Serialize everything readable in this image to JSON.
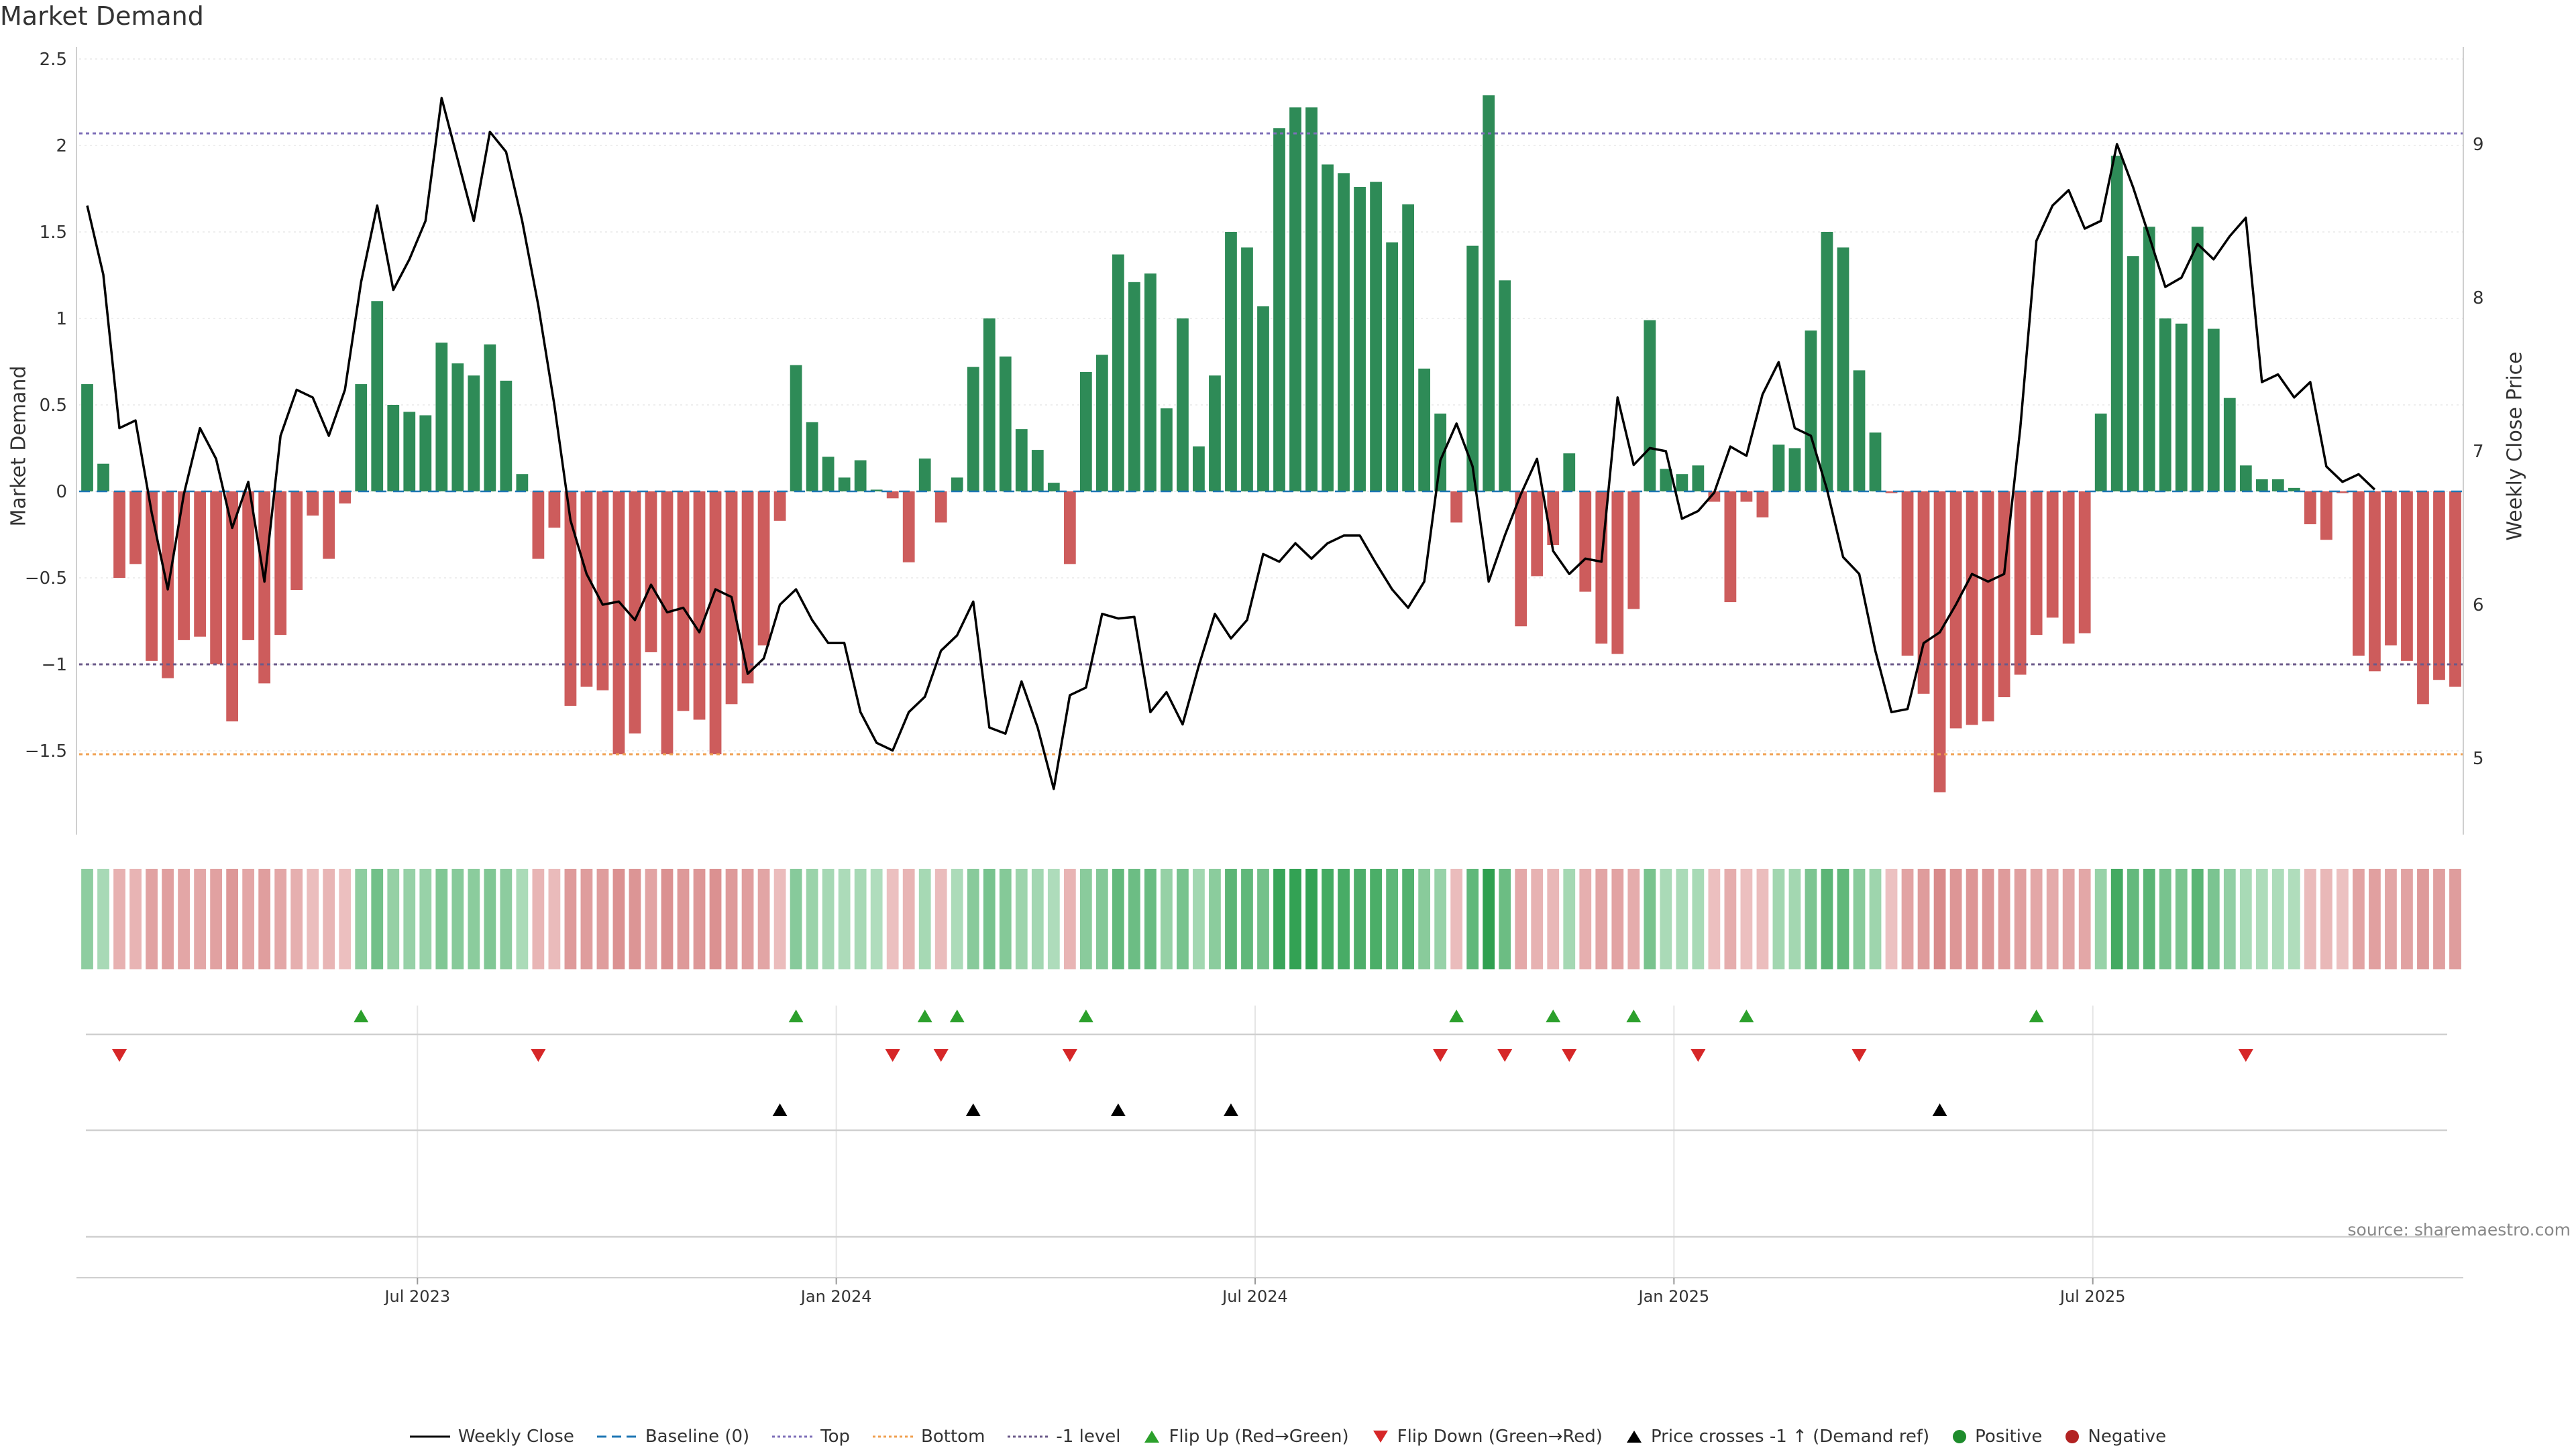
{
  "title": "Market Demand",
  "source": "source: sharemaestro.com",
  "chart_data": {
    "type": "bar",
    "ylabel": "Market Demand",
    "y2label": "Weekly Close Price",
    "ylim": [
      -2.0,
      2.5
    ],
    "y2lim": [
      4.5,
      9.5
    ],
    "yticks": [
      2.5,
      2,
      1.5,
      1,
      0.5,
      0,
      -0.5,
      -1,
      -1.5
    ],
    "yticklabels": [
      "2.5",
      "2",
      "1.5",
      "1",
      "0.5",
      "0",
      "−0.5",
      "−1",
      "−1.5"
    ],
    "y2ticks": [
      9,
      8,
      7,
      6,
      5
    ],
    "y2ticklabels": [
      "9",
      "8",
      "7",
      "6",
      "5"
    ],
    "hlines": [
      {
        "name": "Top",
        "value": 2.07,
        "color": "#7e6fb8"
      },
      {
        "name": "-1 level",
        "value": -1.0,
        "color": "#6b5a8a"
      },
      {
        "name": "Bottom",
        "value": -1.52,
        "color": "#f0a050"
      }
    ],
    "xaxis_labels": [
      "Jul 2023",
      "Jan 2024",
      "Jul 2024",
      "Jan 2025",
      "Jul 2025"
    ],
    "xaxis_label_weeks": [
      21,
      47,
      73,
      99,
      125
    ],
    "demand": [
      0.62,
      0.16,
      -0.5,
      -0.42,
      -0.98,
      -1.08,
      -0.86,
      -0.84,
      -1.0,
      -1.33,
      -0.86,
      -1.11,
      -0.83,
      -0.57,
      -0.14,
      -0.39,
      -0.07,
      0.62,
      1.1,
      0.5,
      0.46,
      0.44,
      0.86,
      0.74,
      0.67,
      0.85,
      0.64,
      0.1,
      -0.39,
      -0.21,
      -1.24,
      -1.13,
      -1.15,
      -1.52,
      -1.4,
      -0.93,
      -1.52,
      -1.27,
      -1.32,
      -1.52,
      -1.23,
      -1.11,
      -0.89,
      -0.17,
      0.73,
      0.4,
      0.2,
      0.08,
      0.18,
      0.01,
      -0.04,
      -0.41,
      0.19,
      -0.18,
      0.08,
      0.72,
      1.0,
      0.78,
      0.36,
      0.24,
      0.05,
      -0.42,
      0.69,
      0.79,
      1.37,
      1.21,
      1.26,
      0.48,
      1.0,
      0.26,
      0.67,
      1.5,
      1.41,
      1.07,
      2.1,
      2.22,
      2.22,
      1.89,
      1.84,
      1.76,
      1.79,
      1.44,
      1.66,
      0.71,
      0.45,
      -0.18,
      1.42,
      2.29,
      1.22,
      -0.78,
      -0.49,
      -0.31,
      0.22,
      -0.58,
      -0.88,
      -0.94,
      -0.68,
      0.99,
      0.13,
      0.1,
      0.15,
      -0.06,
      -0.64,
      -0.06,
      -0.15,
      0.27,
      0.25,
      0.93,
      1.5,
      1.41,
      0.7,
      0.34,
      -0.01,
      -0.95,
      -1.17,
      -1.74,
      -1.37,
      -1.35,
      -1.33,
      -1.19,
      -1.06,
      -0.83,
      -0.73,
      -0.88,
      -0.82,
      0.45,
      1.94,
      1.36,
      1.53,
      1.0,
      0.97,
      1.53,
      0.94,
      0.54,
      0.15,
      0.07,
      0.07,
      0.02,
      -0.19,
      -0.28,
      -0.01,
      -0.95,
      -1.04,
      -0.89,
      -0.98,
      -1.23,
      -1.09,
      -1.13
    ],
    "close": [
      8.6,
      8.15,
      7.15,
      7.2,
      6.6,
      6.1,
      6.72,
      7.15,
      6.95,
      6.5,
      6.8,
      6.15,
      7.1,
      7.4,
      7.35,
      7.1,
      7.4,
      8.1,
      8.6,
      8.05,
      8.25,
      8.5,
      9.3,
      8.9,
      8.5,
      9.08,
      8.95,
      8.5,
      7.95,
      7.3,
      6.55,
      6.2,
      6.0,
      6.02,
      5.9,
      6.13,
      5.95,
      5.98,
      5.82,
      6.1,
      6.05,
      5.55,
      5.65,
      6.0,
      6.1,
      5.9,
      5.75,
      5.75,
      5.3,
      5.1,
      5.05,
      5.3,
      5.4,
      5.7,
      5.8,
      6.02,
      5.2,
      5.16,
      5.5,
      5.2,
      4.8,
      5.41,
      5.46,
      5.94,
      5.91,
      5.92,
      5.3,
      5.43,
      5.22,
      5.6,
      5.94,
      5.78,
      5.9,
      6.33,
      6.28,
      6.4,
      6.3,
      6.4,
      6.45,
      6.45,
      6.27,
      6.1,
      5.98,
      6.15,
      6.94,
      7.18,
      6.9,
      6.15,
      6.45,
      6.72,
      6.95,
      6.35,
      6.2,
      6.3,
      6.28,
      7.35,
      6.91,
      7.02,
      7.0,
      6.56,
      6.61,
      6.73,
      7.03,
      6.97,
      7.37,
      7.58,
      7.15,
      7.1,
      6.75,
      6.31,
      6.2,
      5.7,
      5.3,
      5.32,
      5.75,
      5.82,
      6.0,
      6.2,
      6.15,
      6.2,
      7.15,
      8.37,
      8.6,
      8.7,
      8.45,
      8.5,
      9.0,
      8.72,
      8.4,
      8.07,
      8.13,
      8.35,
      8.25,
      8.4,
      8.52,
      7.45,
      7.5,
      7.35,
      7.45,
      6.9,
      6.8,
      6.85,
      6.75
    ],
    "flip_up_weeks": [
      17,
      44,
      52,
      54,
      62,
      85,
      91,
      96,
      103,
      121
    ],
    "flip_down_weeks": [
      2,
      28,
      50,
      53,
      61,
      84,
      88,
      92,
      100,
      110,
      134
    ],
    "price_cross_weeks": [
      43,
      55,
      64,
      71,
      115
    ]
  },
  "legend": [
    {
      "label": "Weekly Close",
      "marker": "line-solid-black"
    },
    {
      "label": "Baseline (0)",
      "marker": "line-dashed-blue"
    },
    {
      "label": "Top",
      "marker": "line-dotted-purple"
    },
    {
      "label": "Bottom",
      "marker": "line-dotted-orange"
    },
    {
      "label": "-1 level",
      "marker": "line-dotted-gray"
    },
    {
      "label": "Flip Up (Red→Green)",
      "marker": "triangle-up-green"
    },
    {
      "label": "Flip Down (Green→Red)",
      "marker": "triangle-down-red"
    },
    {
      "label": "Price crosses -1 ↑ (Demand ref)",
      "marker": "triangle-up-black"
    },
    {
      "label": "Positive",
      "marker": "circle-green"
    },
    {
      "label": "Negative",
      "marker": "circle-red"
    }
  ],
  "colors": {
    "positive": "#2e8b57",
    "negative": "#cd5c5c",
    "flip_up": "#2ca02c",
    "flip_down": "#d62728",
    "price_line": "#000000",
    "baseline": "#1f77b4",
    "grid": "#dddddd"
  }
}
